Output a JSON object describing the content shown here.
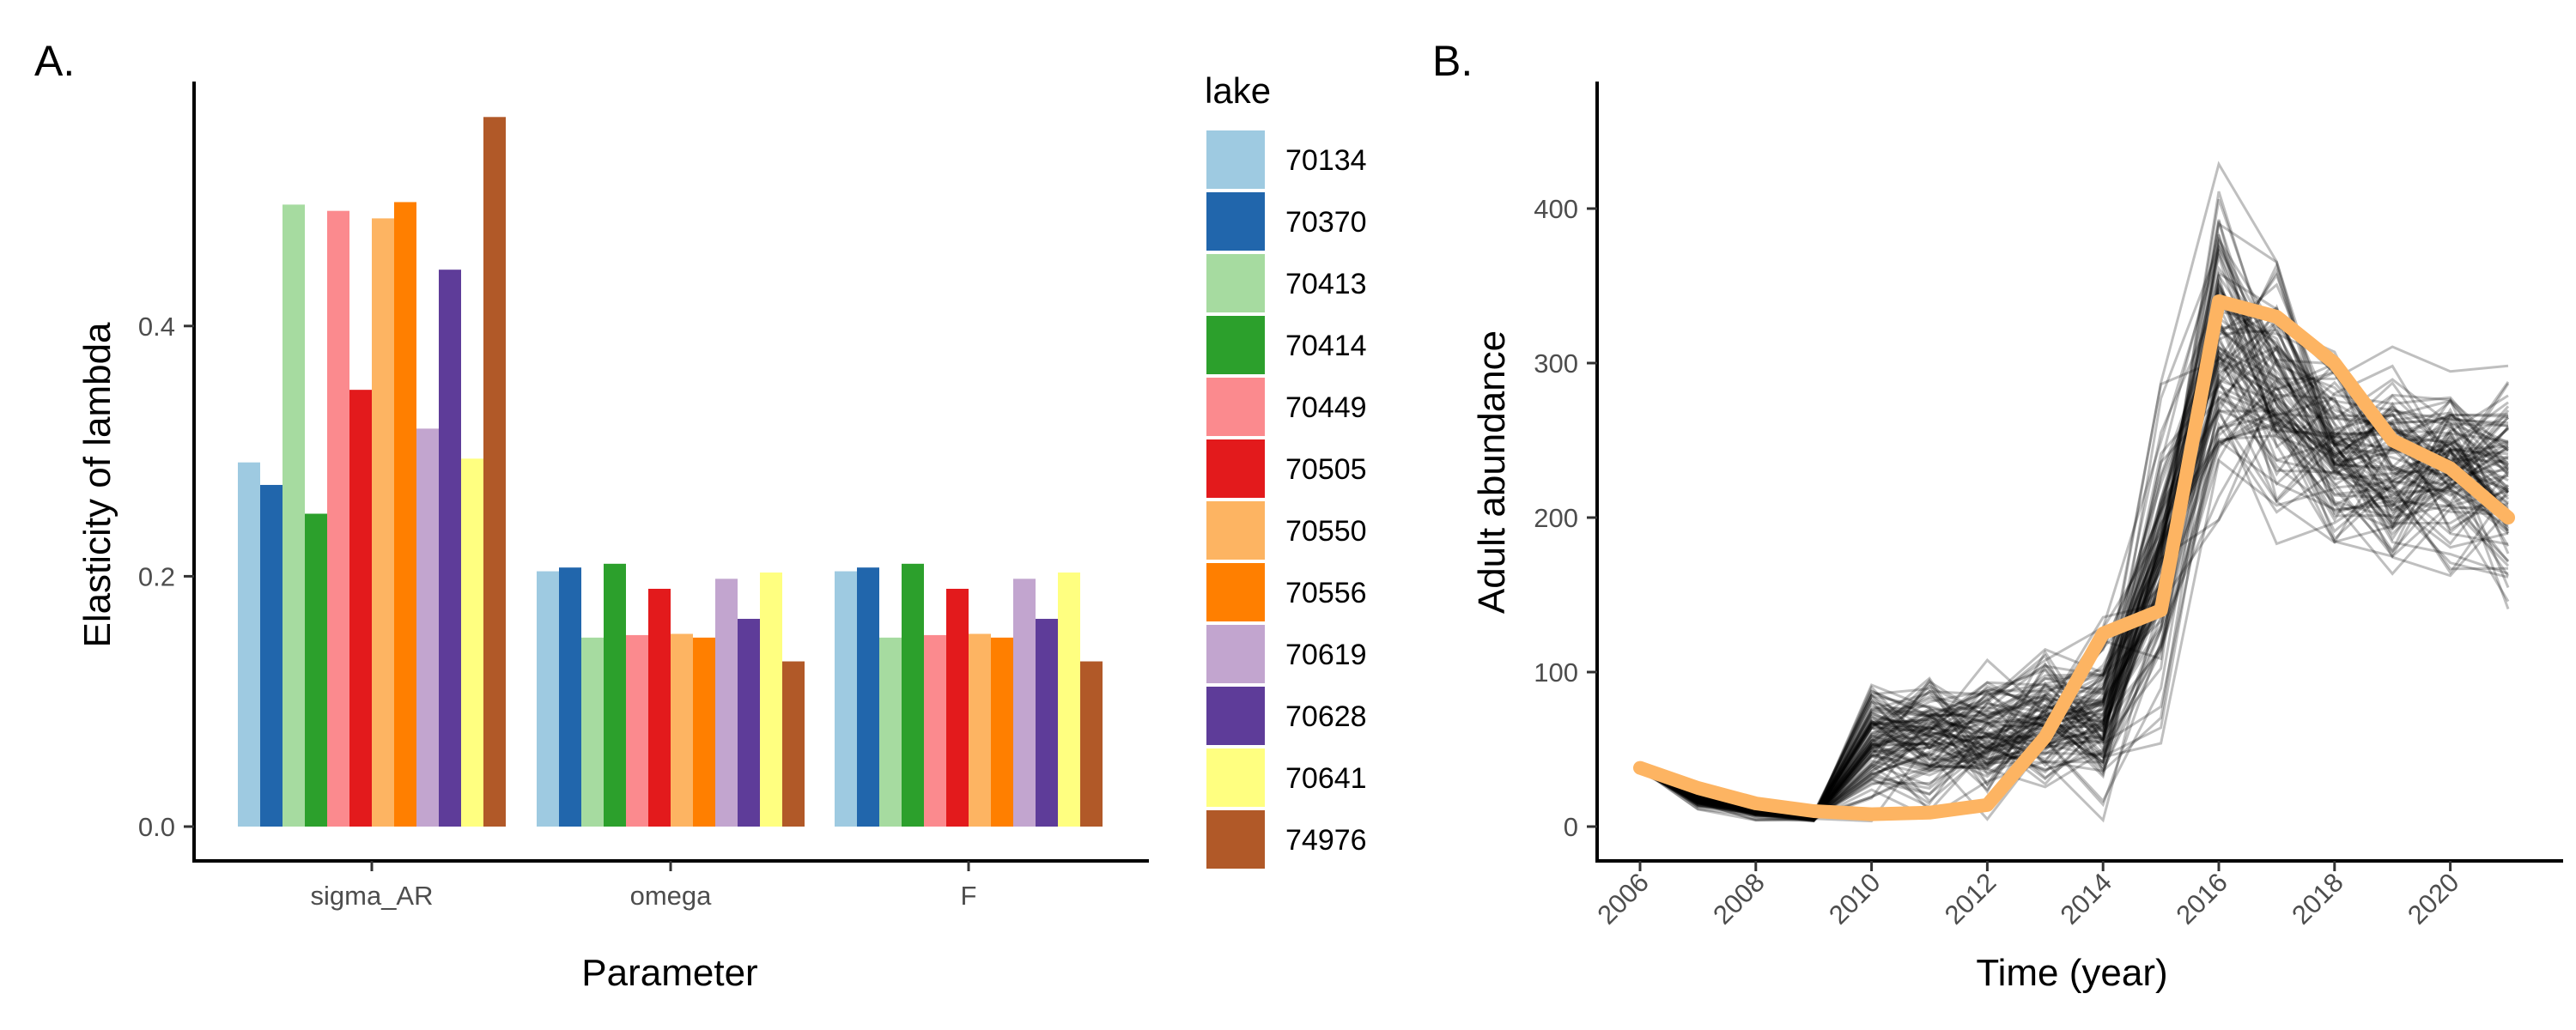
{
  "panels": {
    "a": {
      "tag": "A."
    },
    "b": {
      "tag": "B."
    }
  },
  "chart_data": [
    {
      "type": "bar",
      "panel": "A.",
      "xlabel": "Parameter",
      "ylabel": "Elasticity of lambda",
      "categories": [
        "sigma_AR",
        "omega",
        "F"
      ],
      "yticks": [
        "0.0",
        "0.2",
        "0.4"
      ],
      "ytick_values": [
        0.0,
        0.2,
        0.4
      ],
      "ylim": [
        0,
        0.6
      ],
      "legend": {
        "title": "lake",
        "position": "right"
      },
      "grid": false,
      "series": [
        {
          "name": "70134",
          "color": "#9ECAE1",
          "values": [
            0.291,
            0.204,
            0.204
          ]
        },
        {
          "name": "70370",
          "color": "#2166AC",
          "values": [
            0.273,
            0.207,
            0.207
          ]
        },
        {
          "name": "70413",
          "color": "#A6DBA0",
          "values": [
            0.497,
            0.151,
            0.151
          ]
        },
        {
          "name": "70414",
          "color": "#2CA02C",
          "values": [
            0.25,
            0.21,
            0.21
          ]
        },
        {
          "name": "70449",
          "color": "#FB8A8E",
          "values": [
            0.492,
            0.153,
            0.153
          ]
        },
        {
          "name": "70505",
          "color": "#E31A1C",
          "values": [
            0.349,
            0.19,
            0.19
          ]
        },
        {
          "name": "70550",
          "color": "#FDB462",
          "values": [
            0.486,
            0.154,
            0.154
          ]
        },
        {
          "name": "70556",
          "color": "#FF7F00",
          "values": [
            0.499,
            0.151,
            0.151
          ]
        },
        {
          "name": "70619",
          "color": "#C2A5CF",
          "values": [
            0.318,
            0.198,
            0.198
          ]
        },
        {
          "name": "70628",
          "color": "#5E3C99",
          "values": [
            0.445,
            0.166,
            0.166
          ]
        },
        {
          "name": "70641",
          "color": "#FFFF80",
          "values": [
            0.294,
            0.203,
            0.203
          ]
        },
        {
          "name": "74976",
          "color": "#B15928",
          "values": [
            0.567,
            0.132,
            0.132
          ]
        }
      ]
    },
    {
      "type": "line",
      "panel": "B.",
      "xlabel": "Time (year)",
      "ylabel": "Adult abundance",
      "x": [
        2006,
        2007,
        2008,
        2009,
        2010,
        2011,
        2012,
        2013,
        2014,
        2015,
        2016,
        2017,
        2018,
        2019,
        2020,
        2021
      ],
      "xticks": [
        "2006",
        "2008",
        "2010",
        "2012",
        "2014",
        "2016",
        "2018",
        "2020"
      ],
      "xtick_values": [
        2006,
        2008,
        2010,
        2012,
        2014,
        2016,
        2018,
        2020
      ],
      "yticks": [
        "0",
        "100",
        "200",
        "300",
        "400"
      ],
      "ytick_values": [
        0,
        100,
        200,
        300,
        400
      ],
      "xlim": [
        2005.6,
        2021.4
      ],
      "ylim": [
        -20,
        480
      ],
      "grid": false,
      "series": [
        {
          "name": "",
          "color": "#FDB462",
          "role": "mean",
          "values": [
            38,
            25,
            15,
            10,
            8,
            9,
            14,
            58,
            125,
            140,
            340,
            330,
            300,
            250,
            232,
            200
          ]
        }
      ],
      "simulated_trajectories": {
        "count": 100,
        "color": "#000000",
        "opacity": 0.25,
        "mean": [
          38,
          18,
          10,
          6,
          55,
          58,
          56,
          68,
          70,
          165,
          312,
          282,
          248,
          232,
          232,
          228
        ],
        "spread": [
          2,
          4,
          3,
          2,
          28,
          30,
          30,
          30,
          35,
          65,
          75,
          60,
          45,
          45,
          45,
          50
        ]
      }
    }
  ]
}
